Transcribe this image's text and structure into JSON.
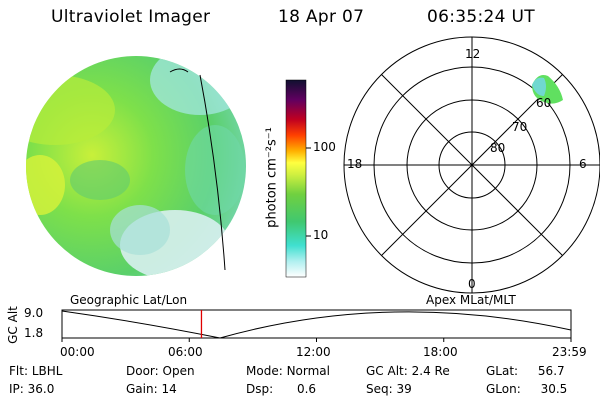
{
  "header": {
    "instrument": "Ultraviolet Imager",
    "date": "18 Apr 07",
    "time": "06:35:24 UT"
  },
  "colors": {
    "accent_marker": "#e00000",
    "line": "#000000"
  },
  "colorbar": {
    "unit_label": "photon cm⁻²s⁻¹",
    "ticks": [
      "100",
      "10"
    ]
  },
  "polar_plot": {
    "mlt_labels": {
      "top": "12",
      "left": "18",
      "right": "6",
      "bottom": "0"
    },
    "lat_labels": [
      "60",
      "70",
      "80"
    ]
  },
  "timeline": {
    "y_axis_title": "GC Alt",
    "y_ticks": [
      "9.0",
      "1.8"
    ],
    "left_caption": "Geographic Lat/Lon",
    "right_caption": "Apex  MLat/MLT",
    "x_ticks": [
      "00:00",
      "06:00",
      "12:00",
      "18:00",
      "23:59"
    ],
    "current_time_fraction": 0.274
  },
  "status": {
    "filter": {
      "label": "Flt:",
      "value": "LBHL"
    },
    "ip": {
      "label": "IP:",
      "value": "36.0"
    },
    "door": {
      "label": "Door:",
      "value": "Open"
    },
    "gain": {
      "label": "Gain:",
      "value": "14"
    },
    "mode": {
      "label": "Mode:",
      "value": "Normal"
    },
    "dsp": {
      "label": "Dsp:",
      "value": "0.6"
    },
    "gc_alt": {
      "label": "GC Alt:",
      "value": "2.4 Re"
    },
    "seq": {
      "label": "Seq:",
      "value": "39"
    },
    "glat": {
      "label": "GLat:",
      "value": "56.7"
    },
    "glon": {
      "label": "GLon:",
      "value": "30.5"
    }
  }
}
